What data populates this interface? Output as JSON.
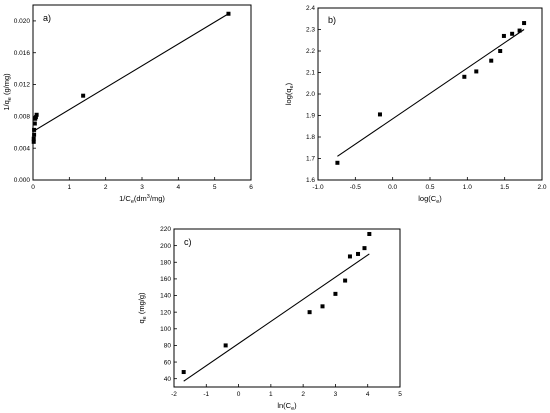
{
  "chart_data": [
    {
      "type": "scatter",
      "panel_label": "a)",
      "xlabel": "1/Ce(dm3/mg)",
      "ylabel": "1/qe (g/mg)",
      "xlim": [
        0,
        6
      ],
      "ylim": [
        0.0,
        0.022
      ],
      "xticks": [
        "0",
        "1",
        "2",
        "3",
        "4",
        "5",
        "6"
      ],
      "yticks": [
        "0.000",
        "0.004",
        "0.008",
        "0.012",
        "0.016",
        "0.020"
      ],
      "series": [
        {
          "points": [
            [
              0.02,
              0.0048
            ],
            [
              0.02,
              0.0052
            ],
            [
              0.03,
              0.0057
            ],
            [
              0.03,
              0.0063
            ],
            [
              0.05,
              0.0071
            ],
            [
              0.06,
              0.0077
            ],
            [
              0.08,
              0.0079
            ],
            [
              0.1,
              0.0082
            ],
            [
              1.38,
              0.0106
            ],
            [
              5.38,
              0.0209
            ]
          ],
          "fit": [
            [
              0.0,
              0.0061
            ],
            [
              5.38,
              0.0209
            ]
          ]
        }
      ]
    },
    {
      "type": "scatter",
      "panel_label": "b)",
      "xlabel": "log(Ce)",
      "ylabel": "log(qe)",
      "xlim": [
        -1.0,
        2.0
      ],
      "ylim": [
        1.6,
        2.4
      ],
      "xticks": [
        "-1.0",
        "-0.5",
        "0.0",
        "0.5",
        "1.0",
        "1.5",
        "2.0"
      ],
      "yticks": [
        "1.6",
        "1.7",
        "1.8",
        "1.9",
        "2.0",
        "2.1",
        "2.2",
        "2.3",
        "2.4"
      ],
      "series": [
        {
          "points": [
            [
              -0.74,
              1.68
            ],
            [
              -0.17,
              1.905
            ],
            [
              0.96,
              2.08
            ],
            [
              1.12,
              2.105
            ],
            [
              1.32,
              2.155
            ],
            [
              1.44,
              2.2
            ],
            [
              1.49,
              2.27
            ],
            [
              1.6,
              2.28
            ],
            [
              1.7,
              2.295
            ],
            [
              1.76,
              2.33
            ]
          ],
          "fit": [
            [
              -0.74,
              1.71
            ],
            [
              1.76,
              2.3
            ]
          ]
        }
      ]
    },
    {
      "type": "scatter",
      "panel_label": "c)",
      "xlabel": "ln(Ce)",
      "ylabel": "qe (mg/g)",
      "xlim": [
        -2,
        5
      ],
      "ylim": [
        30,
        220
      ],
      "xticks": [
        "-2",
        "-1",
        "0",
        "1",
        "2",
        "3",
        "4",
        "5"
      ],
      "yticks": [
        "40",
        "60",
        "80",
        "100",
        "120",
        "140",
        "160",
        "180",
        "200",
        "220"
      ],
      "series": [
        {
          "points": [
            [
              -1.7,
              48
            ],
            [
              -0.4,
              80
            ],
            [
              2.2,
              120
            ],
            [
              2.6,
              127
            ],
            [
              3.0,
              142
            ],
            [
              3.3,
              158
            ],
            [
              3.45,
              187
            ],
            [
              3.7,
              190
            ],
            [
              3.9,
              197
            ],
            [
              4.05,
              214
            ]
          ],
          "fit": [
            [
              -1.7,
              37
            ],
            [
              4.05,
              190
            ]
          ]
        }
      ]
    }
  ]
}
